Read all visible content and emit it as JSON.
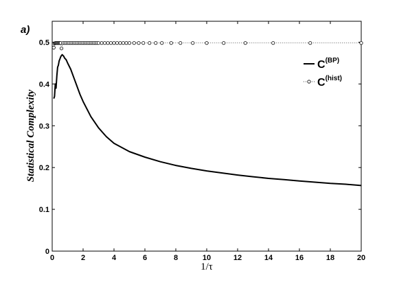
{
  "chart_data": {
    "type": "line",
    "panel_label": "a)",
    "xlabel": "1/τ",
    "ylabel": "Statistical Complexity",
    "xlim": [
      0,
      20
    ],
    "ylim": [
      0,
      0.55
    ],
    "x_ticks": [
      0,
      2,
      4,
      6,
      8,
      10,
      12,
      14,
      16,
      18,
      20
    ],
    "y_ticks": [
      0,
      0.1,
      0.2,
      0.3,
      0.4,
      0.5
    ],
    "grid": false,
    "legend_position": "top-right",
    "series": [
      {
        "name_main": "C",
        "name_sup": "(BP)",
        "style": "solid",
        "color": "#000000",
        "points": [
          [
            0.1,
            0.365
          ],
          [
            0.15,
            0.37
          ],
          [
            0.2,
            0.4
          ],
          [
            0.25,
            0.39
          ],
          [
            0.3,
            0.42
          ],
          [
            0.35,
            0.44
          ],
          [
            0.4,
            0.445
          ],
          [
            0.45,
            0.455
          ],
          [
            0.5,
            0.46
          ],
          [
            0.55,
            0.465
          ],
          [
            0.6,
            0.468
          ],
          [
            0.65,
            0.47
          ],
          [
            0.7,
            0.468
          ],
          [
            0.75,
            0.466
          ],
          [
            0.8,
            0.462
          ],
          [
            0.9,
            0.458
          ],
          [
            1.0,
            0.45
          ],
          [
            1.2,
            0.435
          ],
          [
            1.4,
            0.415
          ],
          [
            1.6,
            0.395
          ],
          [
            1.8,
            0.375
          ],
          [
            2.0,
            0.358
          ],
          [
            2.5,
            0.322
          ],
          [
            3.0,
            0.295
          ],
          [
            3.5,
            0.274
          ],
          [
            4.0,
            0.258
          ],
          [
            5.0,
            0.238
          ],
          [
            6.0,
            0.225
          ],
          [
            7.0,
            0.214
          ],
          [
            8.0,
            0.205
          ],
          [
            9.0,
            0.198
          ],
          [
            10.0,
            0.192
          ],
          [
            11.0,
            0.187
          ],
          [
            12.0,
            0.182
          ],
          [
            13.0,
            0.178
          ],
          [
            14.0,
            0.174
          ],
          [
            15.0,
            0.171
          ],
          [
            16.0,
            0.168
          ],
          [
            17.0,
            0.165
          ],
          [
            18.0,
            0.162
          ],
          [
            19.0,
            0.16
          ],
          [
            20.0,
            0.157
          ]
        ]
      },
      {
        "name_main": "C",
        "name_sup": "(hist)",
        "style": "dotted-circle-markers",
        "color": "#000000",
        "points": [
          [
            0.1,
            0.487
          ],
          [
            0.15,
            0.497
          ],
          [
            0.2,
            0.498
          ],
          [
            0.25,
            0.498
          ],
          [
            0.3,
            0.498
          ],
          [
            0.35,
            0.498
          ],
          [
            0.4,
            0.498
          ],
          [
            0.45,
            0.498
          ],
          [
            0.5,
            0.498
          ],
          [
            0.55,
            0.498
          ],
          [
            0.6,
            0.485
          ],
          [
            0.7,
            0.498
          ],
          [
            0.8,
            0.498
          ],
          [
            0.9,
            0.498
          ],
          [
            1.0,
            0.498
          ],
          [
            1.1,
            0.498
          ],
          [
            1.2,
            0.498
          ],
          [
            1.3,
            0.498
          ],
          [
            1.4,
            0.498
          ],
          [
            1.5,
            0.498
          ],
          [
            1.6,
            0.498
          ],
          [
            1.7,
            0.498
          ],
          [
            1.8,
            0.498
          ],
          [
            1.9,
            0.498
          ],
          [
            2.0,
            0.498
          ],
          [
            2.1,
            0.498
          ],
          [
            2.2,
            0.498
          ],
          [
            2.3,
            0.498
          ],
          [
            2.4,
            0.498
          ],
          [
            2.5,
            0.498
          ],
          [
            2.6,
            0.498
          ],
          [
            2.7,
            0.498
          ],
          [
            2.8,
            0.498
          ],
          [
            2.9,
            0.498
          ],
          [
            3.0,
            0.498
          ],
          [
            3.2,
            0.498
          ],
          [
            3.4,
            0.498
          ],
          [
            3.6,
            0.498
          ],
          [
            3.8,
            0.498
          ],
          [
            4.0,
            0.498
          ],
          [
            4.2,
            0.498
          ],
          [
            4.4,
            0.498
          ],
          [
            4.6,
            0.498
          ],
          [
            4.8,
            0.498
          ],
          [
            5.0,
            0.498
          ],
          [
            5.3,
            0.498
          ],
          [
            5.6,
            0.498
          ],
          [
            5.9,
            0.498
          ],
          [
            6.3,
            0.498
          ],
          [
            6.7,
            0.498
          ],
          [
            7.1,
            0.498
          ],
          [
            7.7,
            0.498
          ],
          [
            8.3,
            0.498
          ],
          [
            9.1,
            0.498
          ],
          [
            10.0,
            0.498
          ],
          [
            11.1,
            0.498
          ],
          [
            12.5,
            0.498
          ],
          [
            14.3,
            0.498
          ],
          [
            16.7,
            0.498
          ],
          [
            20.0,
            0.498
          ]
        ]
      }
    ]
  }
}
